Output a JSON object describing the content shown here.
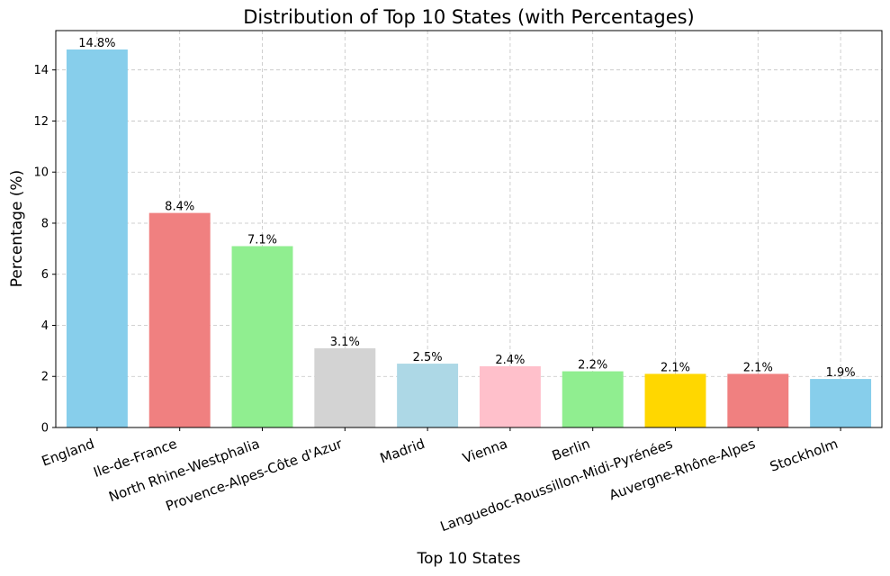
{
  "chart_data": {
    "type": "bar",
    "title": "Distribution of Top 10 States (with Percentages)",
    "xlabel": "Top 10 States",
    "ylabel": "Percentage (%)",
    "categories": [
      "England",
      "Ile-de-France",
      "North Rhine-Westphalia",
      "Provence-Alpes-Côte d'Azur",
      "Madrid",
      "Vienna",
      "Berlin",
      "Languedoc-Roussillon-Midi-Pyrénées",
      "Auvergne-Rhône-Alpes",
      "Stockholm"
    ],
    "values": [
      14.8,
      8.4,
      7.1,
      3.1,
      2.5,
      2.4,
      2.2,
      2.1,
      2.1,
      1.9
    ],
    "data_labels": [
      "14.8%",
      "8.4%",
      "7.1%",
      "3.1%",
      "2.5%",
      "2.4%",
      "2.2%",
      "2.1%",
      "2.1%",
      "1.9%"
    ],
    "colors": [
      "#87ceeb",
      "#f08080",
      "#90ee90",
      "#d3d3d3",
      "#add8e6",
      "#ffc0cb",
      "#90ee90",
      "#ffd700",
      "#f08080",
      "#87ceeb"
    ],
    "ylim": [
      0,
      15.54
    ],
    "yticks": [
      0,
      2,
      4,
      6,
      8,
      10,
      12,
      14
    ],
    "grid": true
  }
}
